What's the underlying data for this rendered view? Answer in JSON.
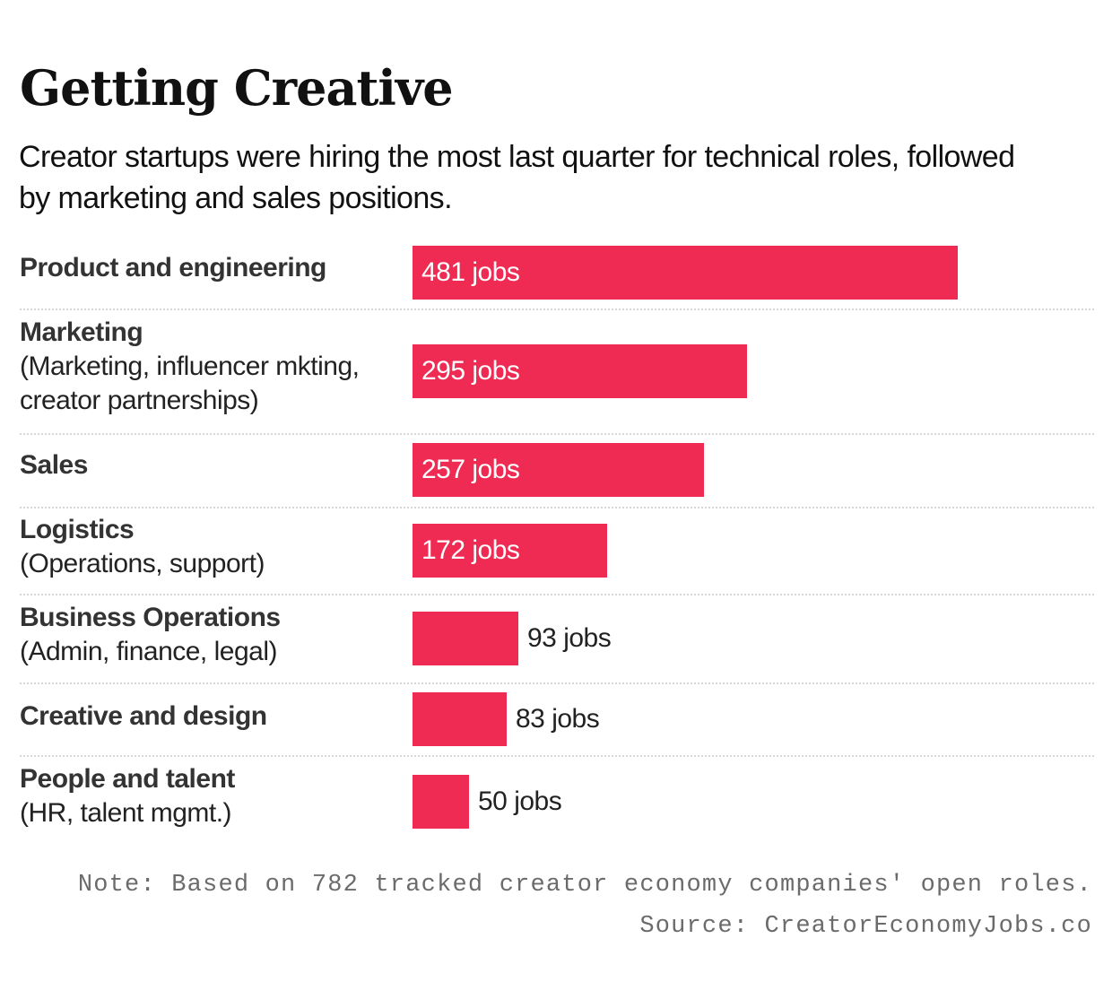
{
  "chart_data": {
    "type": "bar",
    "orientation": "horizontal",
    "title": "Getting Creative",
    "subtitle": "Creator startups were hiring the most last quarter for technical roles, followed by marketing and sales positions.",
    "categories": [
      {
        "name": "Product and engineering",
        "detail": ""
      },
      {
        "name": "Marketing",
        "detail": "(Marketing, influencer mkting, creator partnerships)"
      },
      {
        "name": "Sales",
        "detail": ""
      },
      {
        "name": "Logistics",
        "detail": "(Operations, support)"
      },
      {
        "name": "Business Operations",
        "detail": "(Admin, finance, legal)"
      },
      {
        "name": "Creative and design",
        "detail": ""
      },
      {
        "name": "People and talent",
        "detail": "(HR, talent mgmt.)"
      }
    ],
    "values": [
      481,
      295,
      257,
      172,
      93,
      83,
      50
    ],
    "data_labels": [
      "481 jobs",
      "295 jobs",
      "257 jobs",
      "172 jobs",
      "93 jobs",
      "83 jobs",
      "50 jobs"
    ],
    "unit": "jobs",
    "bar_color": "#f02b53",
    "grid": false,
    "legend": "none",
    "note": "Note: Based on 782 tracked creator economy companies' open roles.",
    "source": "Source: CreatorEconomyJobs.co"
  }
}
